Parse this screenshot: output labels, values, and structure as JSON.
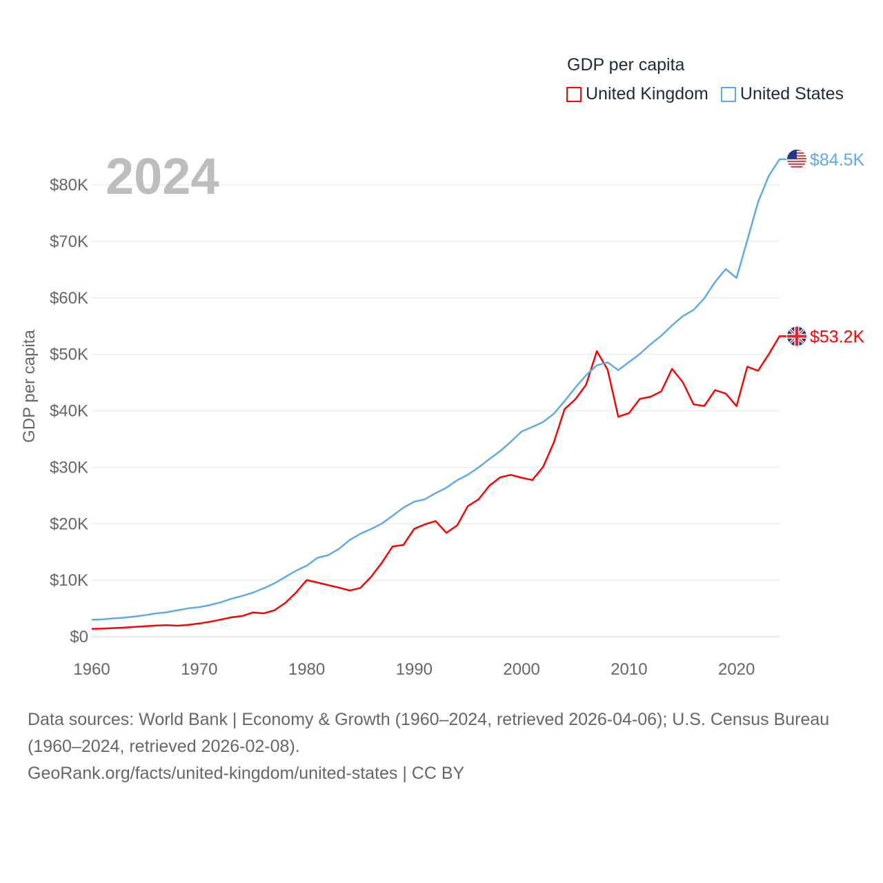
{
  "chart_data": {
    "type": "line",
    "title": "GDP per capita",
    "ylabel": "GDP per capita",
    "xlabel": "",
    "year_label": "2024",
    "xlim": [
      1960,
      2024
    ],
    "ylim": [
      0,
      80000
    ],
    "x_ticks": [
      1960,
      1970,
      1980,
      1990,
      2000,
      2010,
      2020
    ],
    "x_tick_labels": [
      "1960",
      "1970",
      "1980",
      "1990",
      "2000",
      "2010",
      "2020"
    ],
    "y_ticks": [
      0,
      10000,
      20000,
      30000,
      40000,
      50000,
      60000,
      70000,
      80000
    ],
    "y_tick_labels": [
      "$0",
      "$10K",
      "$20K",
      "$30K",
      "$40K",
      "$50K",
      "$60K",
      "$70K",
      "$80K"
    ],
    "grid": true,
    "legend_position": "top-right",
    "x": [
      1960,
      1961,
      1962,
      1963,
      1964,
      1965,
      1966,
      1967,
      1968,
      1969,
      1970,
      1971,
      1972,
      1973,
      1974,
      1975,
      1976,
      1977,
      1978,
      1979,
      1980,
      1981,
      1982,
      1983,
      1984,
      1985,
      1986,
      1987,
      1988,
      1989,
      1990,
      1991,
      1992,
      1993,
      1994,
      1995,
      1996,
      1997,
      1998,
      1999,
      2000,
      2001,
      2002,
      2003,
      2004,
      2005,
      2006,
      2007,
      2008,
      2009,
      2010,
      2011,
      2012,
      2013,
      2014,
      2015,
      2016,
      2017,
      2018,
      2019,
      2020,
      2021,
      2022,
      2023,
      2024
    ],
    "series": [
      {
        "name": "United Kingdom",
        "color": "#ff0000",
        "end_label": "$53.2K",
        "flag": "uk-flag",
        "values": [
          1398,
          1441,
          1526,
          1612,
          1747,
          1874,
          1987,
          2058,
          1952,
          2101,
          2348,
          2650,
          3030,
          3426,
          3666,
          4300,
          4139,
          4681,
          5977,
          7805,
          10032,
          9599,
          9146,
          8692,
          8179,
          8652,
          10612,
          13119,
          15987,
          16239,
          19095,
          19901,
          20487,
          18389,
          19709,
          23123,
          24333,
          26734,
          28214,
          28669,
          28150,
          27744,
          30057,
          34420,
          40291,
          42030,
          44599,
          50566,
          47287,
          38952,
          39599,
          42110,
          42497,
          43426,
          47440,
          45071,
          41147,
          40857,
          43647,
          43070,
          40818,
          47800,
          47100,
          50000,
          53200
        ]
      },
      {
        "name": "United States",
        "color": "#5ea9ea",
        "end_label": "$84.5K",
        "flag": "us-flag",
        "values": [
          3007,
          3067,
          3244,
          3375,
          3574,
          3828,
          4146,
          4336,
          4696,
          5032,
          5234,
          5609,
          6094,
          6726,
          7226,
          7801,
          8592,
          9453,
          10565,
          11674,
          12575,
          13976,
          14434,
          15544,
          17121,
          18237,
          19071,
          20039,
          21417,
          22857,
          23889,
          24342,
          25419,
          26387,
          27695,
          28691,
          29968,
          31459,
          32854,
          34515,
          36330,
          37134,
          38023,
          39496,
          41713,
          44115,
          46299,
          48050,
          48570,
          47195,
          48651,
          50066,
          51784,
          53291,
          55124,
          56763,
          57867,
          59915,
          62805,
          65095,
          63528,
          70219,
          76900,
          81600,
          84534
        ]
      }
    ]
  },
  "legend": {
    "title": "GDP per capita",
    "items": [
      "United Kingdom",
      "United States"
    ]
  },
  "footer": {
    "sources": "Data sources: World Bank | Economy & Growth (1960–2024, retrieved 2026-04-06); U.S. Census Bureau (1960–2024, retrieved 2026-02-08).",
    "attribution": "GeoRank.org/facts/united-kingdom/united-states | CC BY"
  }
}
